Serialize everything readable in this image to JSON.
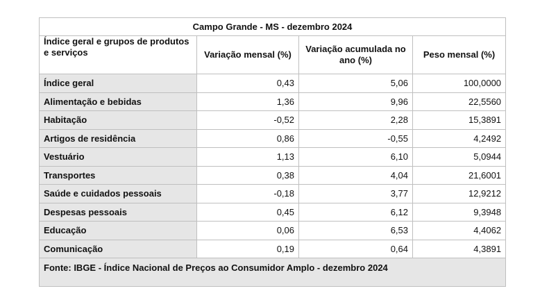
{
  "table": {
    "title": "Campo Grande - MS - dezembro 2024",
    "headers": [
      "Índice geral e grupos de produtos e serviços",
      "Variação mensal (%)",
      "Variação acumulada no ano (%)",
      "Peso mensal (%)"
    ],
    "rows": [
      [
        "Índice geral",
        "0,43",
        "5,06",
        "100,0000"
      ],
      [
        "Alimentação e bebidas",
        "1,36",
        "9,96",
        "22,5560"
      ],
      [
        "Habitação",
        "-0,52",
        "2,28",
        "15,3891"
      ],
      [
        "Artigos de residência",
        "0,86",
        "-0,55",
        "4,2492"
      ],
      [
        "Vestuário",
        "1,13",
        "6,10",
        "5,0944"
      ],
      [
        "Transportes",
        "0,38",
        "4,04",
        "21,6001"
      ],
      [
        "Saúde e cuidados pessoais",
        "-0,18",
        "3,77",
        "12,9212"
      ],
      [
        "Despesas pessoais",
        "0,45",
        "6,12",
        "9,3948"
      ],
      [
        "Educação",
        "0,06",
        "6,53",
        "4,4062"
      ],
      [
        "Comunicação",
        "0,19",
        "0,64",
        "4,3891"
      ]
    ],
    "source": "Fonte: IBGE - Índice Nacional de Preços ao Consumidor Amplo - dezembro 2024"
  }
}
